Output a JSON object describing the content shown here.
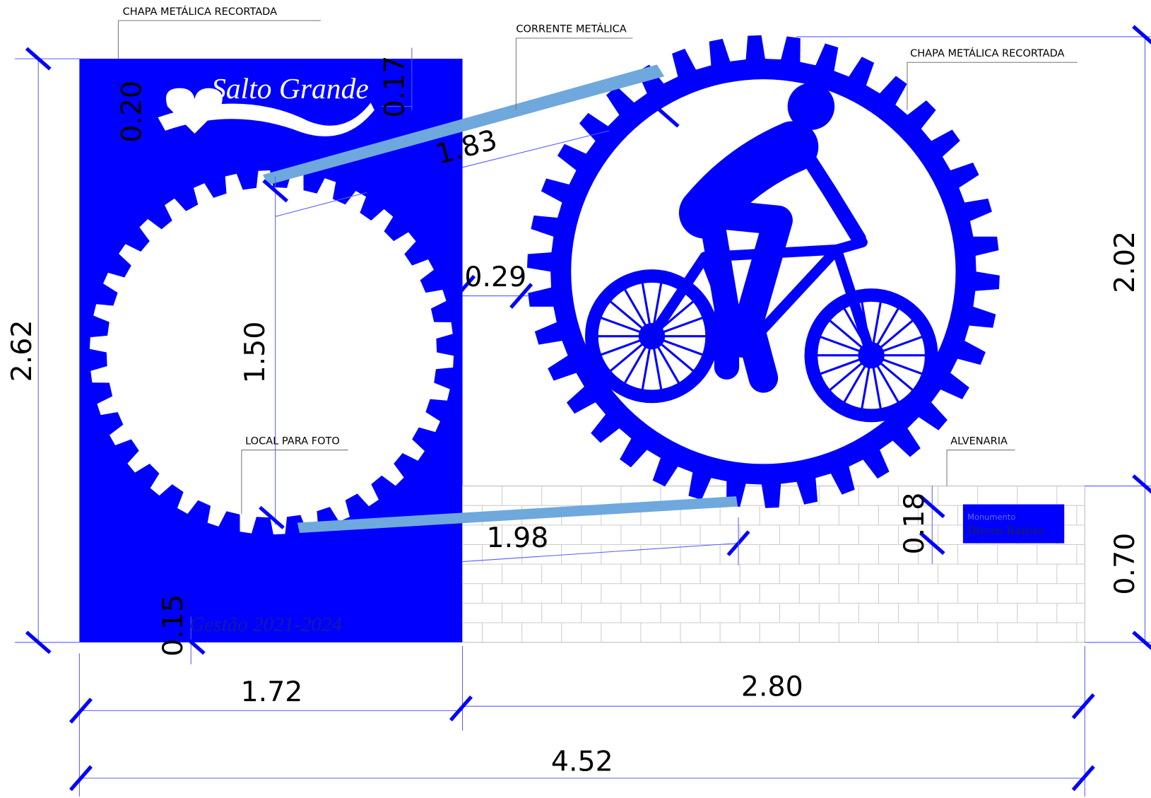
{
  "labels": [
    "CHAPA METÁLICA RECORTADA",
    "CORRENTE METÁLICA",
    "CHAPA METÁLICA RECORTADA",
    "LOCAL PARA FOTO",
    "ALVENARIA"
  ],
  "dimensions": [
    "2.62",
    "0.20",
    "0.17",
    "1.83",
    "1.50",
    "0.29",
    "2.02",
    "0.18",
    "0.70",
    "1.98",
    "0.15",
    "1.72",
    "2.80",
    "4.52"
  ],
  "panel_title": "Salto Grande",
  "panel_footer": "Gestão 2021-2024",
  "sign": {
    "small": "Monumento",
    "name": "Dirceu Batista"
  }
}
